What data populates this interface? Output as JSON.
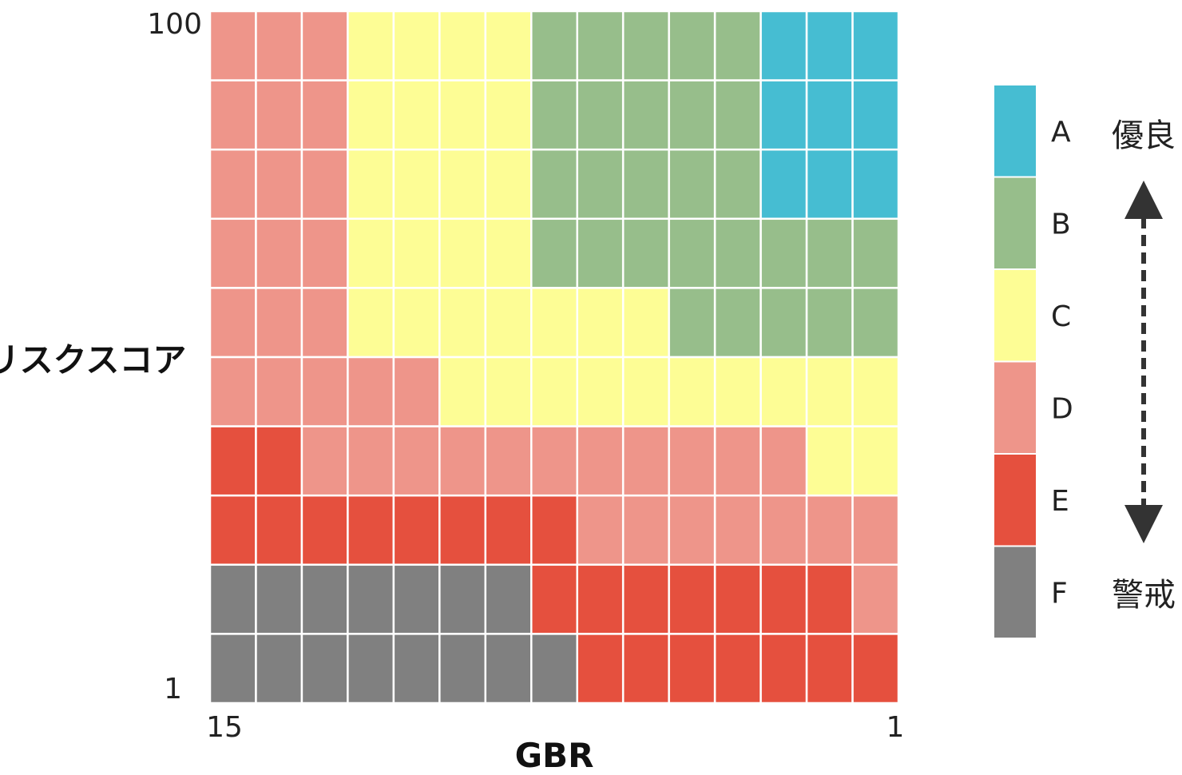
{
  "chart_data": {
    "type": "heatmap",
    "title": "",
    "xlabel": "GBR",
    "ylabel": "リスクスコア",
    "x_ticks": {
      "left": "15",
      "right": "1"
    },
    "y_ticks": {
      "top": "100",
      "bottom": "1"
    },
    "n_cols": 15,
    "n_rows": 10,
    "grades": [
      {
        "grade": "A",
        "color": "#46bdd2"
      },
      {
        "grade": "B",
        "color": "#97be8b"
      },
      {
        "grade": "C",
        "color": "#fdfd95"
      },
      {
        "grade": "D",
        "color": "#ee958a"
      },
      {
        "grade": "E",
        "color": "#e5503e"
      },
      {
        "grade": "F",
        "color": "#808080"
      }
    ],
    "cells": [
      [
        "D",
        "D",
        "D",
        "C",
        "C",
        "C",
        "C",
        "B",
        "B",
        "B",
        "B",
        "B",
        "A",
        "A",
        "A"
      ],
      [
        "D",
        "D",
        "D",
        "C",
        "C",
        "C",
        "C",
        "B",
        "B",
        "B",
        "B",
        "B",
        "A",
        "A",
        "A"
      ],
      [
        "D",
        "D",
        "D",
        "C",
        "C",
        "C",
        "C",
        "B",
        "B",
        "B",
        "B",
        "B",
        "A",
        "A",
        "A"
      ],
      [
        "D",
        "D",
        "D",
        "C",
        "C",
        "C",
        "C",
        "B",
        "B",
        "B",
        "B",
        "B",
        "B",
        "B",
        "B"
      ],
      [
        "D",
        "D",
        "D",
        "C",
        "C",
        "C",
        "C",
        "C",
        "C",
        "C",
        "B",
        "B",
        "B",
        "B",
        "B"
      ],
      [
        "D",
        "D",
        "D",
        "D",
        "D",
        "C",
        "C",
        "C",
        "C",
        "C",
        "C",
        "C",
        "C",
        "C",
        "C"
      ],
      [
        "E",
        "E",
        "D",
        "D",
        "D",
        "D",
        "D",
        "D",
        "D",
        "D",
        "D",
        "D",
        "D",
        "C",
        "C"
      ],
      [
        "E",
        "E",
        "E",
        "E",
        "E",
        "E",
        "E",
        "E",
        "D",
        "D",
        "D",
        "D",
        "D",
        "D",
        "D"
      ],
      [
        "F",
        "F",
        "F",
        "F",
        "F",
        "F",
        "F",
        "E",
        "E",
        "E",
        "E",
        "E",
        "E",
        "E",
        "D"
      ],
      [
        "F",
        "F",
        "F",
        "F",
        "F",
        "F",
        "F",
        "F",
        "E",
        "E",
        "E",
        "E",
        "E",
        "E",
        "E"
      ]
    ],
    "legend": {
      "top_word": "優良",
      "bottom_word": "警戒"
    }
  }
}
